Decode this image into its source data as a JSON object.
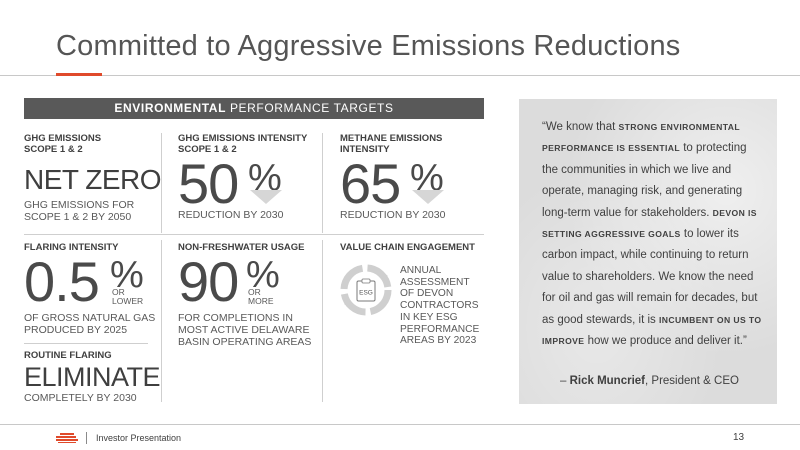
{
  "title": "Committed to Aggressive Emissions Reductions",
  "banner": {
    "bold": "ENVIRONMENTAL",
    "rest": "PERFORMANCE TARGETS"
  },
  "targets": {
    "ghg": {
      "label": "GHG EMISSIONS\nSCOPE 1 & 2",
      "value": "NET ZERO",
      "sub": "GHG EMISSIONS FOR\nSCOPE 1 & 2 BY 2050"
    },
    "ghg_intensity": {
      "label": "GHG EMISSIONS INTENSITY\nSCOPE 1 & 2",
      "value": "50",
      "unit": "%",
      "sub": "REDUCTION BY 2030"
    },
    "methane": {
      "label": "METHANE EMISSIONS\nINTENSITY",
      "value": "65",
      "unit": "%",
      "sub": "REDUCTION BY 2030"
    },
    "flaring": {
      "label": "FLARING INTENSITY",
      "value": "0.5",
      "unit": "%",
      "qualifier": "OR\nLOWER",
      "sub": "OF GROSS NATURAL GAS\nPRODUCED BY 2025"
    },
    "routine_flaring": {
      "label": "ROUTINE FLARING",
      "value": "ELIMINATE",
      "sub": "COMPLETELY BY 2030"
    },
    "water": {
      "label": "NON-FRESHWATER USAGE",
      "value": "90",
      "unit": "%",
      "qualifier": "OR\nMORE",
      "sub": "FOR COMPLETIONS IN\nMOST ACTIVE DELAWARE\nBASIN OPERATING AREAS"
    },
    "value_chain": {
      "label": "VALUE CHAIN ENGAGEMENT",
      "icon_text": "ESG",
      "sub": "ANNUAL\nASSESSMENT\nOF DEVON\nCONTRACTORS\nIN KEY ESG\nPERFORMANCE\nAREAS BY 2023"
    }
  },
  "quote": {
    "p1": "“We know that ",
    "b1": "strong environmental performance is essential",
    "p2": " to protecting the communities in which we live and operate, managing risk, and generating long-term value for stakeholders. ",
    "b2": "Devon is setting aggressive goals",
    "p3": " to lower its carbon impact, while continuing to return value to shareholders. We know the need for oil and gas will remain for decades, but as good stewards, it is ",
    "b3": "incumbent on us to improve",
    "p4": " how we produce and deliver it.”",
    "attr_dash": "– ",
    "attr_name": "Rick Muncrief",
    "attr_title": ", President & CEO"
  },
  "footer": {
    "text": "Investor Presentation",
    "page": "13"
  },
  "colors": {
    "accent": "#e04a2b",
    "banner": "#595959",
    "quote_bg": "#dcdcdc"
  }
}
